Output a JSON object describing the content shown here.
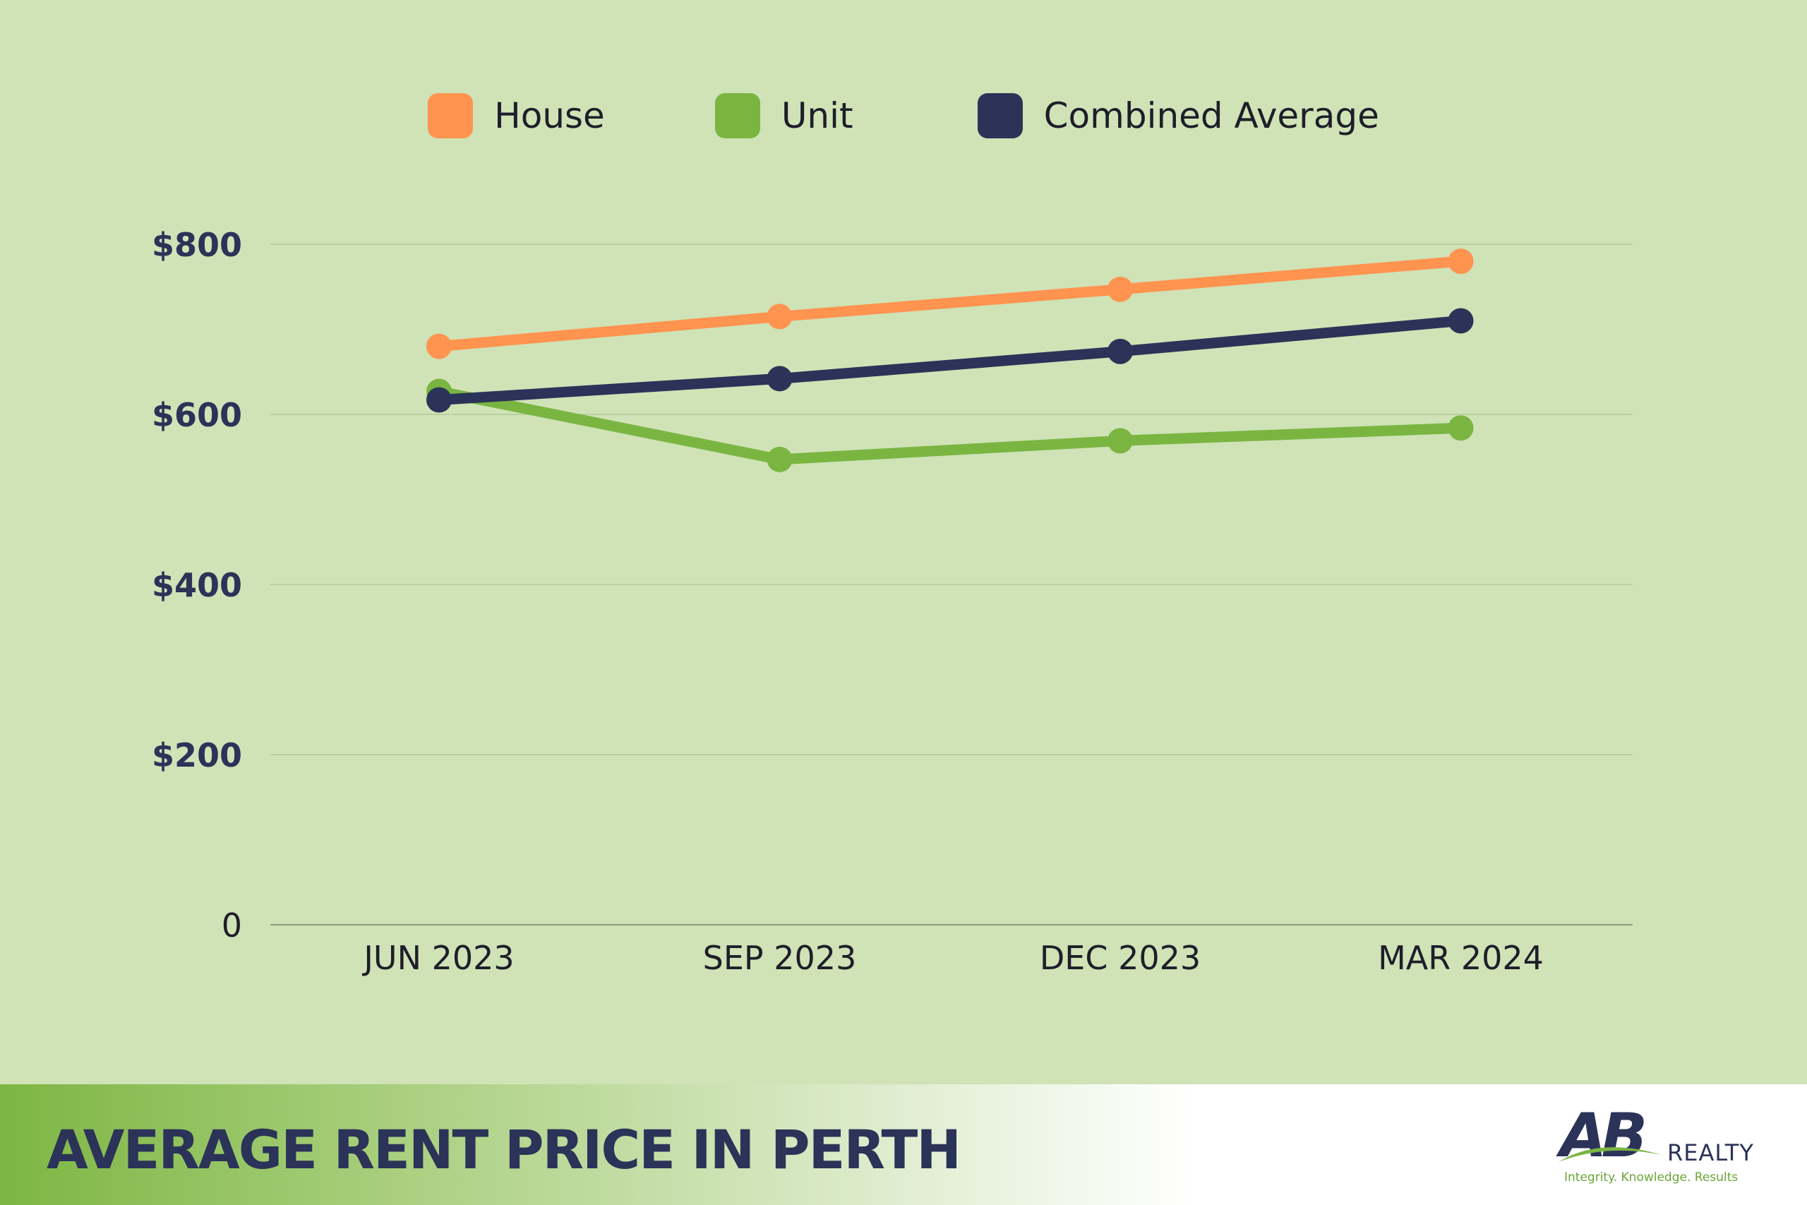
{
  "chart_data": {
    "type": "line",
    "categories": [
      "JUN 2023",
      "SEP 2023",
      "DEC 2023",
      "MAR 2024"
    ],
    "series": [
      {
        "name": "House",
        "color": "#ff9350",
        "values": [
          680,
          715,
          747,
          780
        ]
      },
      {
        "name": "Unit",
        "color": "#7ab542",
        "values": [
          627,
          547,
          569,
          584
        ]
      },
      {
        "name": "Combined Average",
        "color": "#2b3358",
        "values": [
          617,
          642,
          674,
          710
        ]
      }
    ],
    "yticks": [
      {
        "value": 0,
        "label": "0"
      },
      {
        "value": 200,
        "label": "$200"
      },
      {
        "value": 400,
        "label": "$400"
      },
      {
        "value": 600,
        "label": "$600"
      },
      {
        "value": 800,
        "label": "$800"
      }
    ],
    "ylim": [
      0,
      800
    ],
    "grid": true,
    "legend_position": "top-center"
  },
  "footer": {
    "title": "AVERAGE RENT PRICE IN PERTH"
  },
  "logo": {
    "mark": "AB",
    "word": "REALTY",
    "tagline": "Integrity. Knowledge. Results"
  }
}
